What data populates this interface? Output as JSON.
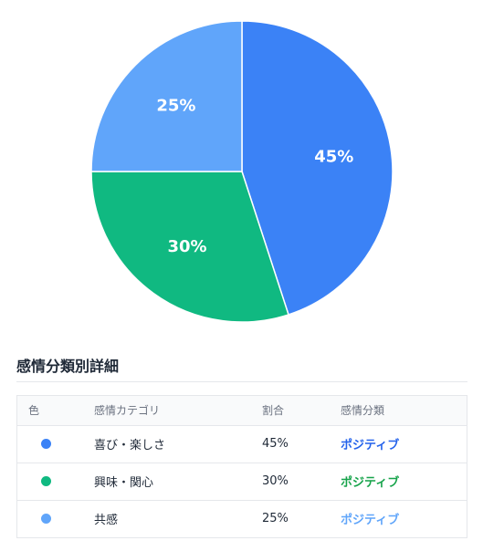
{
  "chart_data": {
    "type": "pie",
    "title": "",
    "legend": "none",
    "slices": [
      {
        "label": "45%",
        "value": 45,
        "color": "#3b82f6"
      },
      {
        "label": "30%",
        "value": 30,
        "color": "#10b981"
      },
      {
        "label": "25%",
        "value": 25,
        "color": "#60a5fa"
      }
    ]
  },
  "details": {
    "title": "感情分類別詳細",
    "headers": {
      "color": "色",
      "category": "感情カテゴリ",
      "ratio": "割合",
      "classification": "感情分類"
    },
    "rows": [
      {
        "color": "#3b82f6",
        "category": "喜び・楽しさ",
        "ratio": "45%",
        "classification": "ポジティブ",
        "class_color": "#2563eb"
      },
      {
        "color": "#10b981",
        "category": "興味・関心",
        "ratio": "30%",
        "classification": "ポジティブ",
        "class_color": "#16a34a"
      },
      {
        "color": "#60a5fa",
        "category": "共感",
        "ratio": "25%",
        "classification": "ポジティブ",
        "class_color": "#60a5fa"
      }
    ]
  }
}
